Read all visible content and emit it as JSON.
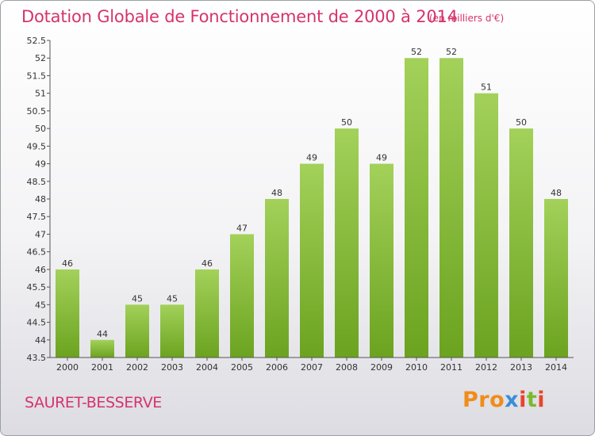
{
  "header": {
    "title": "Dotation Globale de Fonctionnement de 2000 à 2014",
    "unit": "(en milliers d'€)"
  },
  "footer": {
    "city": "SAURET-BESSERVE",
    "logo": {
      "p1": "Pro",
      "p2": "x",
      "p3": "i",
      "p4": "t",
      "p5": "i"
    }
  },
  "chart_data": {
    "type": "bar",
    "title": "Dotation Globale de Fonctionnement de 2000 à 2014",
    "subtitle": "(en milliers d'€)",
    "categories": [
      "2000",
      "2001",
      "2002",
      "2003",
      "2004",
      "2005",
      "2006",
      "2007",
      "2008",
      "2009",
      "2010",
      "2011",
      "2012",
      "2013",
      "2014"
    ],
    "values": [
      46,
      44,
      45,
      45,
      46,
      47,
      48,
      49,
      50,
      49,
      52,
      52,
      51,
      50,
      48
    ],
    "data_labels": [
      "46",
      "44",
      "45",
      "45",
      "46",
      "47",
      "48",
      "49",
      "50",
      "49",
      "52",
      "52",
      "51",
      "50",
      "48"
    ],
    "ylim": [
      43.5,
      52.5
    ],
    "yticks": [
      "43.5",
      "44",
      "44.5",
      "45",
      "45.5",
      "46",
      "46.5",
      "47",
      "47.5",
      "48",
      "48.5",
      "49",
      "49.5",
      "50",
      "50.5",
      "51",
      "51.5",
      "52",
      "52.5"
    ],
    "grid": false,
    "colors": {
      "bar_top": "#a3d15a",
      "bar_bottom": "#6ba31f",
      "axis": "#555555"
    }
  }
}
